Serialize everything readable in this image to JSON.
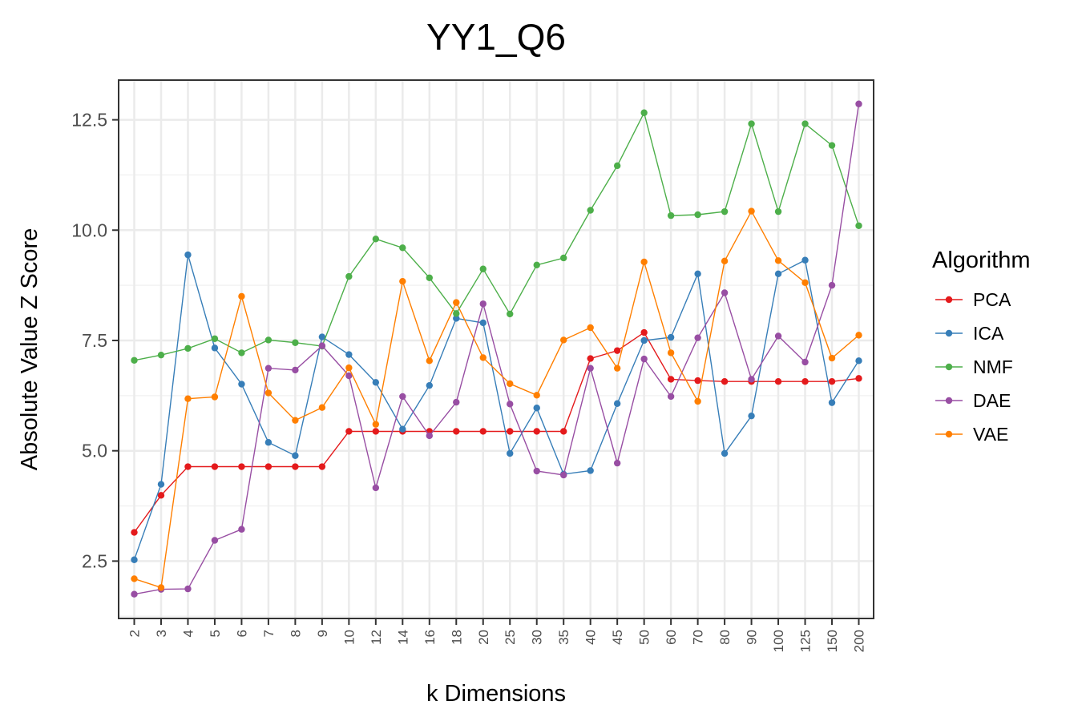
{
  "chart_data": {
    "type": "line",
    "title": "YY1_Q6",
    "xlabel": "k Dimensions",
    "ylabel": "Absolute Value Z Score",
    "categories": [
      "2",
      "3",
      "4",
      "5",
      "6",
      "7",
      "8",
      "9",
      "10",
      "12",
      "14",
      "16",
      "18",
      "20",
      "25",
      "30",
      "35",
      "40",
      "45",
      "50",
      "60",
      "70",
      "80",
      "90",
      "100",
      "125",
      "150",
      "200"
    ],
    "ylim": [
      1.2,
      13.4
    ],
    "yticks": [
      2.5,
      5.0,
      7.5,
      10.0,
      12.5
    ],
    "ytick_labels": [
      "2.5",
      "5.0",
      "7.5",
      "10.0",
      "12.5"
    ],
    "grid": true,
    "legend": {
      "title": "Algorithm",
      "position": "right"
    },
    "series": [
      {
        "name": "PCA",
        "color": "#E41A1C",
        "values": [
          3.15,
          3.99,
          4.64,
          4.64,
          4.64,
          4.64,
          4.64,
          4.64,
          5.44,
          5.44,
          5.44,
          5.44,
          5.44,
          5.44,
          5.44,
          5.44,
          5.44,
          7.09,
          7.27,
          7.68,
          6.62,
          6.59,
          6.57,
          6.57,
          6.57,
          6.57,
          6.57,
          6.64
        ]
      },
      {
        "name": "ICA",
        "color": "#377EB8",
        "values": [
          2.53,
          4.24,
          9.44,
          7.33,
          6.51,
          5.19,
          4.89,
          7.58,
          7.18,
          6.55,
          5.49,
          6.48,
          8.0,
          7.9,
          4.94,
          5.97,
          4.47,
          4.55,
          6.07,
          7.5,
          7.57,
          9.01,
          4.94,
          5.79,
          9.01,
          9.32,
          6.09,
          7.04
        ]
      },
      {
        "name": "NMF",
        "color": "#4DAF4A",
        "values": [
          7.05,
          7.17,
          7.32,
          7.54,
          7.22,
          7.51,
          7.45,
          7.37,
          8.95,
          9.8,
          9.6,
          8.92,
          8.11,
          9.12,
          8.1,
          9.21,
          9.37,
          10.45,
          11.46,
          12.66,
          10.33,
          10.35,
          10.42,
          12.41,
          10.42,
          12.41,
          11.92,
          10.1
        ]
      },
      {
        "name": "DAE",
        "color": "#984EA3",
        "values": [
          1.75,
          1.86,
          1.87,
          2.97,
          3.22,
          6.87,
          6.83,
          7.38,
          6.7,
          4.16,
          6.23,
          5.34,
          6.1,
          8.33,
          6.06,
          4.54,
          4.45,
          6.87,
          4.72,
          7.08,
          6.23,
          7.56,
          8.58,
          6.62,
          7.6,
          7.01,
          8.75,
          12.86
        ]
      },
      {
        "name": "VAE",
        "color": "#FF7F00",
        "values": [
          2.1,
          1.9,
          6.18,
          6.22,
          8.5,
          6.31,
          5.69,
          5.98,
          6.88,
          5.6,
          8.84,
          7.04,
          8.36,
          7.11,
          6.52,
          6.26,
          7.51,
          7.79,
          6.87,
          9.28,
          7.22,
          6.12,
          9.3,
          10.43,
          9.31,
          8.81,
          7.1,
          7.62
        ]
      }
    ]
  }
}
